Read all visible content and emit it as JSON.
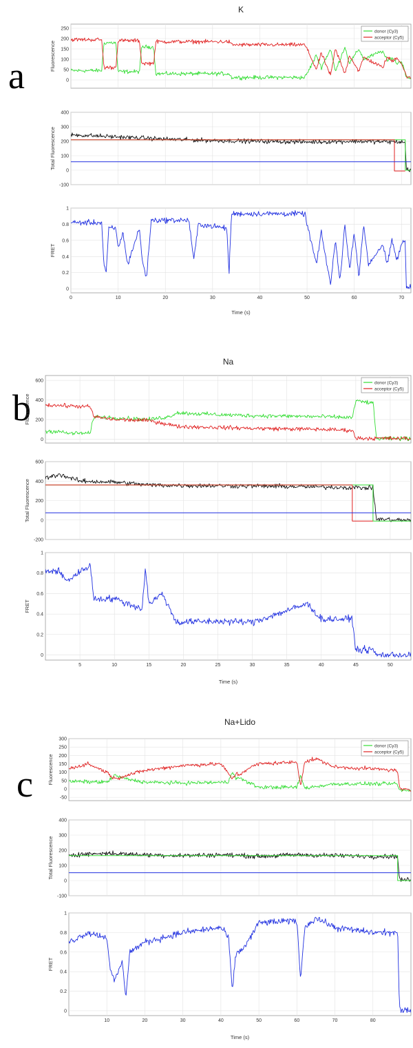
{
  "chart_data": [
    {
      "type": "line",
      "panel_label": "a",
      "title": "K",
      "xlabel": "Time (s)",
      "xlim": [
        0,
        72
      ],
      "xticks": [
        0,
        10,
        20,
        30,
        40,
        50,
        60,
        70
      ],
      "legend": {
        "placement": "top-right",
        "entries": [
          "donor (Cy3)",
          "acceptor (Cy5)"
        ]
      },
      "grid": true,
      "colors": {
        "donor": "#33dd33",
        "acceptor": "#e02020",
        "total": "#111111",
        "fret": "#1f2fe0",
        "mean": "#33dd33",
        "baseline": "#1f2fe0"
      },
      "subplots": [
        {
          "name": "fluorescence",
          "ylabel": "Fluorescence",
          "ylim": [
            -40,
            270
          ],
          "yticks": [
            0,
            50,
            100,
            150,
            200,
            250
          ],
          "ytick_labels": [
            "0",
            "50",
            "100",
            "150",
            "200",
            "250"
          ],
          "series": [
            {
              "name": "donor (Cy3)",
              "x": [
                0,
                6.5,
                7,
                9.5,
                10,
                14.5,
                15,
                17.5,
                18,
                33.5,
                34,
                49.5,
                50,
                52,
                53,
                55,
                56,
                58,
                59,
                61,
                62,
                66,
                67,
                68,
                69,
                70,
                71,
                72
              ],
              "y": [
                45,
                45,
                180,
                180,
                40,
                40,
                160,
                160,
                30,
                30,
                12,
                12,
                30,
                120,
                60,
                150,
                40,
                160,
                80,
                150,
                100,
                140,
                90,
                110,
                80,
                90,
                20,
                5
              ]
            },
            {
              "name": "acceptor (Cy5)",
              "x": [
                0,
                6.5,
                7,
                9.5,
                10,
                14.5,
                15,
                17.5,
                18,
                33.5,
                34,
                49.5,
                50,
                52,
                53,
                55,
                56,
                58,
                59,
                61,
                62,
                66,
                67,
                68,
                69,
                70,
                71,
                72
              ],
              "y": [
                195,
                195,
                60,
                60,
                190,
                190,
                80,
                80,
                185,
                185,
                170,
                170,
                150,
                50,
                130,
                20,
                150,
                30,
                120,
                40,
                110,
                60,
                110,
                90,
                110,
                80,
                20,
                5
              ]
            }
          ]
        },
        {
          "name": "total",
          "ylabel": "Total Fluorescence",
          "ylim": [
            -100,
            400
          ],
          "yticks": [
            -100,
            0,
            100,
            200,
            300,
            400
          ],
          "series": [
            {
              "name": "total",
              "x": [
                0,
                10,
                20,
                30,
                40,
                50,
                60,
                70,
                70.8,
                71,
                72
              ],
              "y": [
                245,
                230,
                215,
                205,
                200,
                195,
                200,
                195,
                190,
                5,
                5
              ]
            },
            {
              "name": "mean",
              "x": [
                0,
                70.8,
                70.8,
                72
              ],
              "y": [
                210,
                210,
                0,
                0
              ]
            },
            {
              "name": "acceptor_step",
              "x": [
                0,
                68.5,
                68.5,
                70.8
              ],
              "y": [
                210,
                210,
                -5,
                -5
              ]
            },
            {
              "name": "baseline",
              "x": [
                0,
                72
              ],
              "y": [
                58,
                58
              ]
            }
          ]
        },
        {
          "name": "fret",
          "ylabel": "FRET",
          "ylim": [
            -0.05,
            1
          ],
          "yticks": [
            0,
            0.2,
            0.4,
            0.6,
            0.8,
            1
          ],
          "series": [
            {
              "name": "FRET",
              "x": [
                0,
                6.5,
                7,
                7.5,
                8,
                9.5,
                10,
                11,
                12,
                14.5,
                15,
                16,
                17,
                25,
                26,
                27,
                33,
                33.5,
                34,
                49.5,
                50,
                52,
                53,
                55,
                56,
                57,
                58,
                59,
                60,
                61,
                62,
                63,
                66,
                67,
                68,
                69,
                70,
                70.8,
                71,
                72
              ],
              "y": [
                0.82,
                0.82,
                0.3,
                0.2,
                0.75,
                0.75,
                0.5,
                0.7,
                0.3,
                0.75,
                0.4,
                0.12,
                0.85,
                0.85,
                0.35,
                0.8,
                0.75,
                0.2,
                0.93,
                0.93,
                0.8,
                0.3,
                0.7,
                0.05,
                0.6,
                0.1,
                0.8,
                0.25,
                0.7,
                0.15,
                0.8,
                0.3,
                0.55,
                0.3,
                0.6,
                0.35,
                0.55,
                0.6,
                0.02,
                0.02
              ]
            }
          ]
        }
      ]
    },
    {
      "type": "line",
      "panel_label": "b",
      "title": "Na",
      "xlabel": "Time (s)",
      "xlim": [
        0,
        53
      ],
      "xticks": [
        5,
        10,
        15,
        20,
        25,
        30,
        35,
        40,
        45,
        50
      ],
      "legend": {
        "placement": "top-right",
        "entries": [
          "donor (Cy3)",
          "acceptor (Cy5)"
        ]
      },
      "grid": true,
      "colors": {
        "donor": "#33dd33",
        "acceptor": "#e02020",
        "total": "#111111",
        "fret": "#1f2fe0",
        "mean": "#33dd33",
        "baseline": "#1f2fe0"
      },
      "subplots": [
        {
          "name": "fluorescence",
          "ylabel": "Fluorescence",
          "ylim": [
            -40,
            650
          ],
          "yticks": [
            0,
            200,
            400,
            600
          ],
          "series": [
            {
              "name": "donor (Cy3)",
              "x": [
                0,
                2,
                3,
                6.5,
                7,
                10,
                15,
                18,
                19,
                25,
                30,
                40,
                44.5,
                45,
                47.5,
                48,
                53
              ],
              "y": [
                80,
                80,
                60,
                60,
                230,
                220,
                200,
                230,
                270,
                250,
                240,
                230,
                220,
                390,
                370,
                5,
                5
              ]
            },
            {
              "name": "acceptor (Cy5)",
              "x": [
                0,
                6.5,
                7,
                10,
                15,
                18,
                19,
                25,
                30,
                40,
                44.5,
                45,
                53
              ],
              "y": [
                350,
                330,
                230,
                200,
                190,
                150,
                130,
                120,
                110,
                100,
                90,
                10,
                5
              ]
            }
          ]
        },
        {
          "name": "total",
          "ylabel": "Total Fluorescence",
          "ylim": [
            -200,
            600
          ],
          "yticks": [
            -200,
            0,
            200,
            400,
            600
          ],
          "series": [
            {
              "name": "total",
              "x": [
                0,
                2,
                5,
                10,
                15,
                20,
                30,
                40,
                47.5,
                48,
                53
              ],
              "y": [
                430,
                470,
                400,
                390,
                360,
                355,
                350,
                340,
                330,
                10,
                -5
              ]
            },
            {
              "name": "mean",
              "x": [
                0,
                47.5,
                47.5,
                53
              ],
              "y": [
                360,
                360,
                -10,
                -10
              ]
            },
            {
              "name": "acceptor_step",
              "x": [
                0,
                44.5,
                44.5,
                47.5
              ],
              "y": [
                360,
                360,
                -10,
                -10
              ]
            },
            {
              "name": "baseline",
              "x": [
                0,
                53
              ],
              "y": [
                75,
                75
              ]
            }
          ]
        },
        {
          "name": "fret",
          "ylabel": "FRET",
          "ylim": [
            -0.05,
            1
          ],
          "yticks": [
            0,
            0.2,
            0.4,
            0.6,
            0.8,
            1
          ],
          "series": [
            {
              "name": "FRET",
              "x": [
                0,
                2,
                3,
                6.5,
                7,
                10,
                14,
                14.5,
                15,
                17,
                18,
                19,
                25,
                30,
                38,
                40,
                44.5,
                45,
                47.5,
                48,
                53
              ],
              "y": [
                0.82,
                0.82,
                0.72,
                0.88,
                0.55,
                0.55,
                0.45,
                0.85,
                0.5,
                0.6,
                0.45,
                0.32,
                0.33,
                0.32,
                0.5,
                0.35,
                0.35,
                0.05,
                0.05,
                0,
                0
              ]
            }
          ]
        }
      ]
    },
    {
      "type": "line",
      "panel_label": "c",
      "title": "Na+Lido",
      "xlabel": "Time (s)",
      "xlim": [
        0,
        90
      ],
      "xticks": [
        10,
        20,
        30,
        40,
        50,
        60,
        70,
        80
      ],
      "legend": {
        "placement": "top-right",
        "entries": [
          "donor (Cy3)",
          "acceptor (Cy5)"
        ]
      },
      "grid": true,
      "colors": {
        "donor": "#33dd33",
        "acceptor": "#e02020",
        "total": "#111111",
        "fret": "#1f2fe0",
        "mean": "#33dd33",
        "baseline": "#1f2fe0"
      },
      "subplots": [
        {
          "name": "fluorescence",
          "ylabel": "Fluorescence",
          "ylim": [
            -70,
            300
          ],
          "yticks": [
            -50,
            0,
            50,
            100,
            150,
            200,
            250,
            300
          ],
          "series": [
            {
              "name": "donor (Cy3)",
              "x": [
                0,
                10,
                12,
                15,
                20,
                30,
                42,
                43,
                44,
                45,
                47,
                50,
                60,
                61,
                62,
                70,
                80,
                86.5,
                87,
                90
              ],
              "y": [
                45,
                40,
                80,
                60,
                40,
                35,
                40,
                110,
                60,
                65,
                40,
                10,
                10,
                80,
                5,
                30,
                30,
                30,
                -10,
                -10
              ]
            },
            {
              "name": "acceptor (Cy5)",
              "x": [
                0,
                5,
                10,
                12,
                15,
                20,
                30,
                40,
                43,
                44,
                45,
                47,
                50,
                60,
                61,
                62,
                65,
                70,
                80,
                86.5,
                87,
                90
              ],
              "y": [
                120,
                150,
                100,
                60,
                80,
                110,
                140,
                150,
                60,
                90,
                85,
                120,
                150,
                160,
                20,
                160,
                180,
                130,
                120,
                110,
                0,
                -10
              ]
            }
          ]
        },
        {
          "name": "total",
          "ylabel": "Total Fluorescence",
          "ylim": [
            -100,
            400
          ],
          "yticks": [
            -100,
            0,
            100,
            200,
            300,
            400
          ],
          "series": [
            {
              "name": "total",
              "x": [
                0,
                10,
                20,
                30,
                40,
                50,
                60,
                70,
                80,
                86.5,
                87,
                90
              ],
              "y": [
                170,
                180,
                170,
                165,
                170,
                160,
                170,
                165,
                160,
                160,
                5,
                5
              ]
            },
            {
              "name": "mean",
              "x": [
                0,
                86.5,
                86.5,
                90
              ],
              "y": [
                165,
                165,
                0,
                0
              ]
            },
            {
              "name": "baseline",
              "x": [
                0,
                90
              ],
              "y": [
                52,
                52
              ]
            }
          ]
        },
        {
          "name": "fret",
          "ylabel": "FRET",
          "ylim": [
            -0.05,
            1
          ],
          "yticks": [
            0,
            0.2,
            0.4,
            0.6,
            0.8,
            1
          ],
          "series": [
            {
              "name": "FRET",
              "x": [
                0,
                5,
                10,
                11,
                12,
                14,
                15,
                16,
                20,
                25,
                30,
                40,
                42,
                43,
                44,
                45,
                47,
                50,
                60,
                61,
                62,
                65,
                70,
                80,
                86.5,
                87,
                90
              ],
              "y": [
                0.7,
                0.8,
                0.75,
                0.4,
                0.3,
                0.5,
                0.15,
                0.6,
                0.7,
                0.75,
                0.8,
                0.85,
                0.75,
                0.2,
                0.6,
                0.6,
                0.7,
                0.9,
                0.92,
                0.3,
                0.85,
                0.95,
                0.85,
                0.8,
                0.8,
                0,
                0
              ]
            }
          ]
        }
      ]
    }
  ]
}
